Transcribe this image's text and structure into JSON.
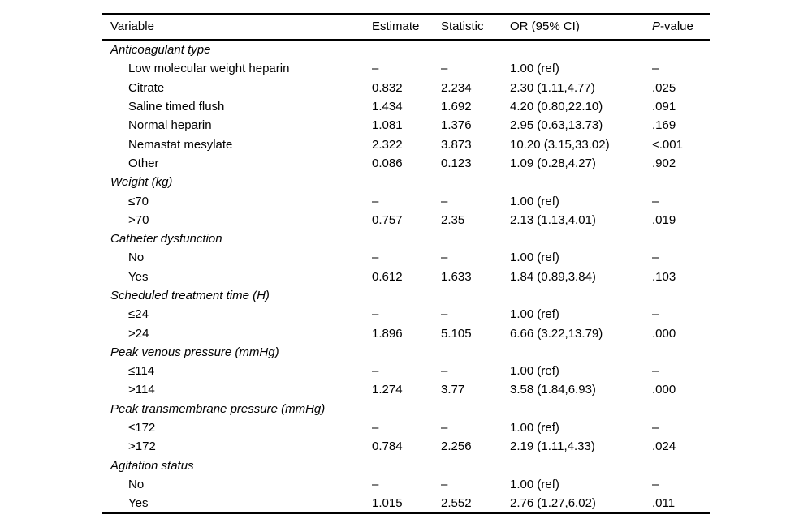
{
  "table": {
    "header": {
      "variable": "Variable",
      "estimate": "Estimate",
      "statistic": "Statistic",
      "or_ci": "OR (95% CI)",
      "p_italic": "P",
      "p_rest": "-value"
    },
    "sections": [
      {
        "label": "Anticoagulant type",
        "rows": [
          {
            "variable": "Low molecular weight heparin",
            "estimate": "–",
            "statistic": "–",
            "or_ci": "1.00 (ref)",
            "p": "–"
          },
          {
            "variable": "Citrate",
            "estimate": "0.832",
            "statistic": "2.234",
            "or_ci": "2.30 (1.11,4.77)",
            "p": ".025"
          },
          {
            "variable": "Saline timed flush",
            "estimate": "1.434",
            "statistic": "1.692",
            "or_ci": "4.20 (0.80,22.10)",
            "p": ".091"
          },
          {
            "variable": "Normal heparin",
            "estimate": "1.081",
            "statistic": "1.376",
            "or_ci": "2.95 (0.63,13.73)",
            "p": ".169"
          },
          {
            "variable": "Nemastat mesylate",
            "estimate": "2.322",
            "statistic": "3.873",
            "or_ci": "10.20 (3.15,33.02)",
            "p": "<.001"
          },
          {
            "variable": "Other",
            "estimate": "0.086",
            "statistic": "0.123",
            "or_ci": "1.09 (0.28,4.27)",
            "p": ".902"
          }
        ]
      },
      {
        "label": "Weight (kg)",
        "rows": [
          {
            "variable": "≤70",
            "estimate": "–",
            "statistic": "–",
            "or_ci": "1.00 (ref)",
            "p": "–"
          },
          {
            "variable": ">70",
            "estimate": "0.757",
            "statistic": "2.35",
            "or_ci": "2.13 (1.13,4.01)",
            "p": ".019"
          }
        ]
      },
      {
        "label": "Catheter dysfunction",
        "rows": [
          {
            "variable": "No",
            "estimate": "–",
            "statistic": "–",
            "or_ci": "1.00 (ref)",
            "p": "–"
          },
          {
            "variable": "Yes",
            "estimate": "0.612",
            "statistic": "1.633",
            "or_ci": "1.84 (0.89,3.84)",
            "p": ".103"
          }
        ]
      },
      {
        "label": "Scheduled treatment time (H)",
        "rows": [
          {
            "variable": "≤24",
            "estimate": "–",
            "statistic": "–",
            "or_ci": "1.00 (ref)",
            "p": "–"
          },
          {
            "variable": ">24",
            "estimate": "1.896",
            "statistic": "5.105",
            "or_ci": "6.66 (3.22,13.79)",
            "p": ".000"
          }
        ]
      },
      {
        "label": "Peak venous pressure (mmHg)",
        "rows": [
          {
            "variable": "≤114",
            "estimate": "–",
            "statistic": "–",
            "or_ci": "1.00 (ref)",
            "p": "–"
          },
          {
            "variable": ">114",
            "estimate": "1.274",
            "statistic": "3.77",
            "or_ci": "3.58 (1.84,6.93)",
            "p": ".000"
          }
        ]
      },
      {
        "label": "Peak transmembrane pressure (mmHg)",
        "rows": [
          {
            "variable": "≤172",
            "estimate": "–",
            "statistic": "–",
            "or_ci": "1.00 (ref)",
            "p": "–"
          },
          {
            "variable": ">172",
            "estimate": "0.784",
            "statistic": "2.256",
            "or_ci": "2.19 (1.11,4.33)",
            "p": ".024"
          }
        ]
      },
      {
        "label": "Agitation status",
        "rows": [
          {
            "variable": "No",
            "estimate": "–",
            "statistic": "–",
            "or_ci": "1.00 (ref)",
            "p": "–"
          },
          {
            "variable": "Yes",
            "estimate": "1.015",
            "statistic": "2.552",
            "or_ci": "2.76 (1.27,6.02)",
            "p": ".011"
          }
        ]
      }
    ]
  }
}
